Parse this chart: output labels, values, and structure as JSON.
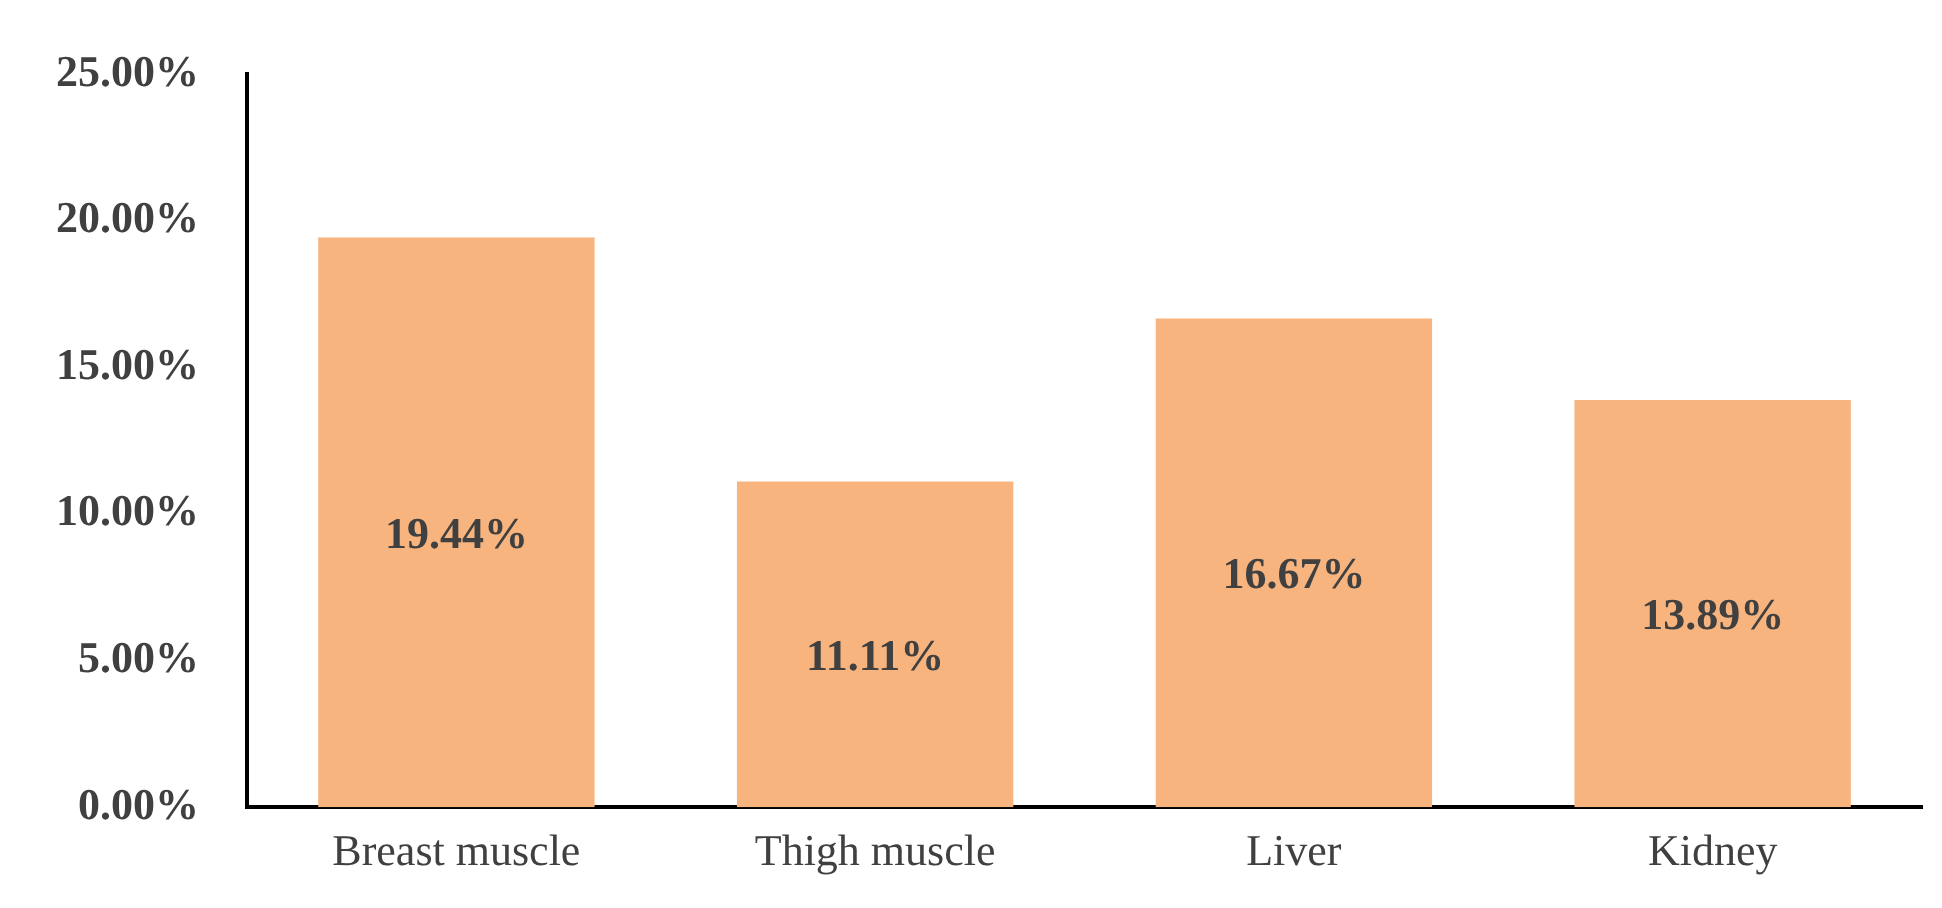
{
  "chart_data": {
    "type": "bar",
    "categories": [
      "Breast muscle",
      "Thigh muscle",
      "Liver",
      "Kidney"
    ],
    "values": [
      19.44,
      11.11,
      16.67,
      13.89
    ],
    "value_labels": [
      "19.44%",
      "11.11%",
      "16.67%",
      "13.89%"
    ],
    "color": "#f8b47e",
    "ylim": [
      0,
      25
    ],
    "yticks": [
      {
        "value": 0,
        "label": "0.00%"
      },
      {
        "value": 5,
        "label": "5.00%"
      },
      {
        "value": 10,
        "label": "10.00%"
      },
      {
        "value": 15,
        "label": "15.00%"
      },
      {
        "value": 20,
        "label": "20.00%"
      },
      {
        "value": 25,
        "label": "25.00%"
      }
    ],
    "grid": false,
    "legend": false
  }
}
